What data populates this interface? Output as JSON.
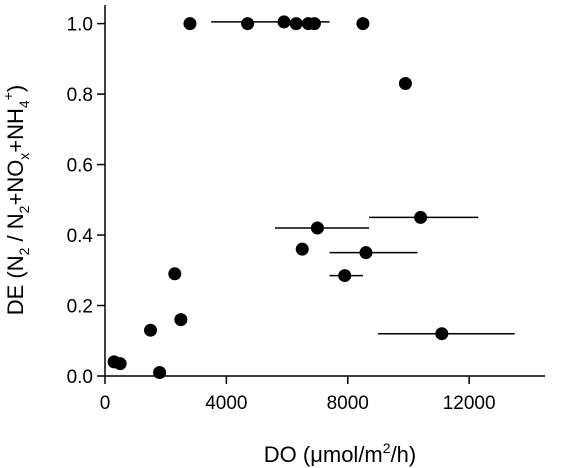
{
  "chart_data": {
    "type": "scatter",
    "xlabel": {
      "base": "DO (",
      "mu": "μ",
      "unit_a": "mol/m",
      "sup": "2",
      "unit_b": "/h)"
    },
    "ylabel": {
      "p1": "DE (N",
      "s1": "2",
      "p2": " / N",
      "s2": "2",
      "p3": "+NO",
      "s3": "x",
      "p4": "+NH",
      "s4": "4",
      "sup": "+",
      "p5": ")"
    },
    "xlim": [
      0,
      14500
    ],
    "ylim": [
      0,
      1.05
    ],
    "xticks": [
      0,
      4000,
      8000,
      12000
    ],
    "xtick_labels": [
      "0",
      "4000",
      "8000",
      "12000"
    ],
    "yticks": [
      0.0,
      0.2,
      0.4,
      0.6,
      0.8,
      1.0
    ],
    "ytick_labels": [
      "0.0",
      "0.2",
      "0.4",
      "0.6",
      "0.8",
      "1.0"
    ],
    "grid": false,
    "legend": "none",
    "points": [
      {
        "x": 300,
        "y": 0.04
      },
      {
        "x": 500,
        "y": 0.035
      },
      {
        "x": 1500,
        "y": 0.13
      },
      {
        "x": 1800,
        "y": 0.01
      },
      {
        "x": 2300,
        "y": 0.29
      },
      {
        "x": 2500,
        "y": 0.16
      },
      {
        "x": 2800,
        "y": 1.0
      },
      {
        "x": 4700,
        "y": 1.0
      },
      {
        "x": 5900,
        "y": 1.005,
        "xerr": [
          3500,
          7400
        ]
      },
      {
        "x": 6300,
        "y": 1.0
      },
      {
        "x": 6700,
        "y": 1.0
      },
      {
        "x": 6900,
        "y": 1.0
      },
      {
        "x": 8500,
        "y": 1.0
      },
      {
        "x": 9900,
        "y": 0.83
      },
      {
        "x": 10400,
        "y": 0.45,
        "xerr": [
          8700,
          12300
        ]
      },
      {
        "x": 7000,
        "y": 0.42,
        "xerr": [
          5600,
          8700
        ]
      },
      {
        "x": 6500,
        "y": 0.36
      },
      {
        "x": 8600,
        "y": 0.35,
        "xerr": [
          7400,
          10300
        ]
      },
      {
        "x": 7900,
        "y": 0.285,
        "xerr": [
          7400,
          8500
        ]
      },
      {
        "x": 11100,
        "y": 0.12,
        "xerr": [
          9000,
          13500
        ]
      }
    ]
  }
}
